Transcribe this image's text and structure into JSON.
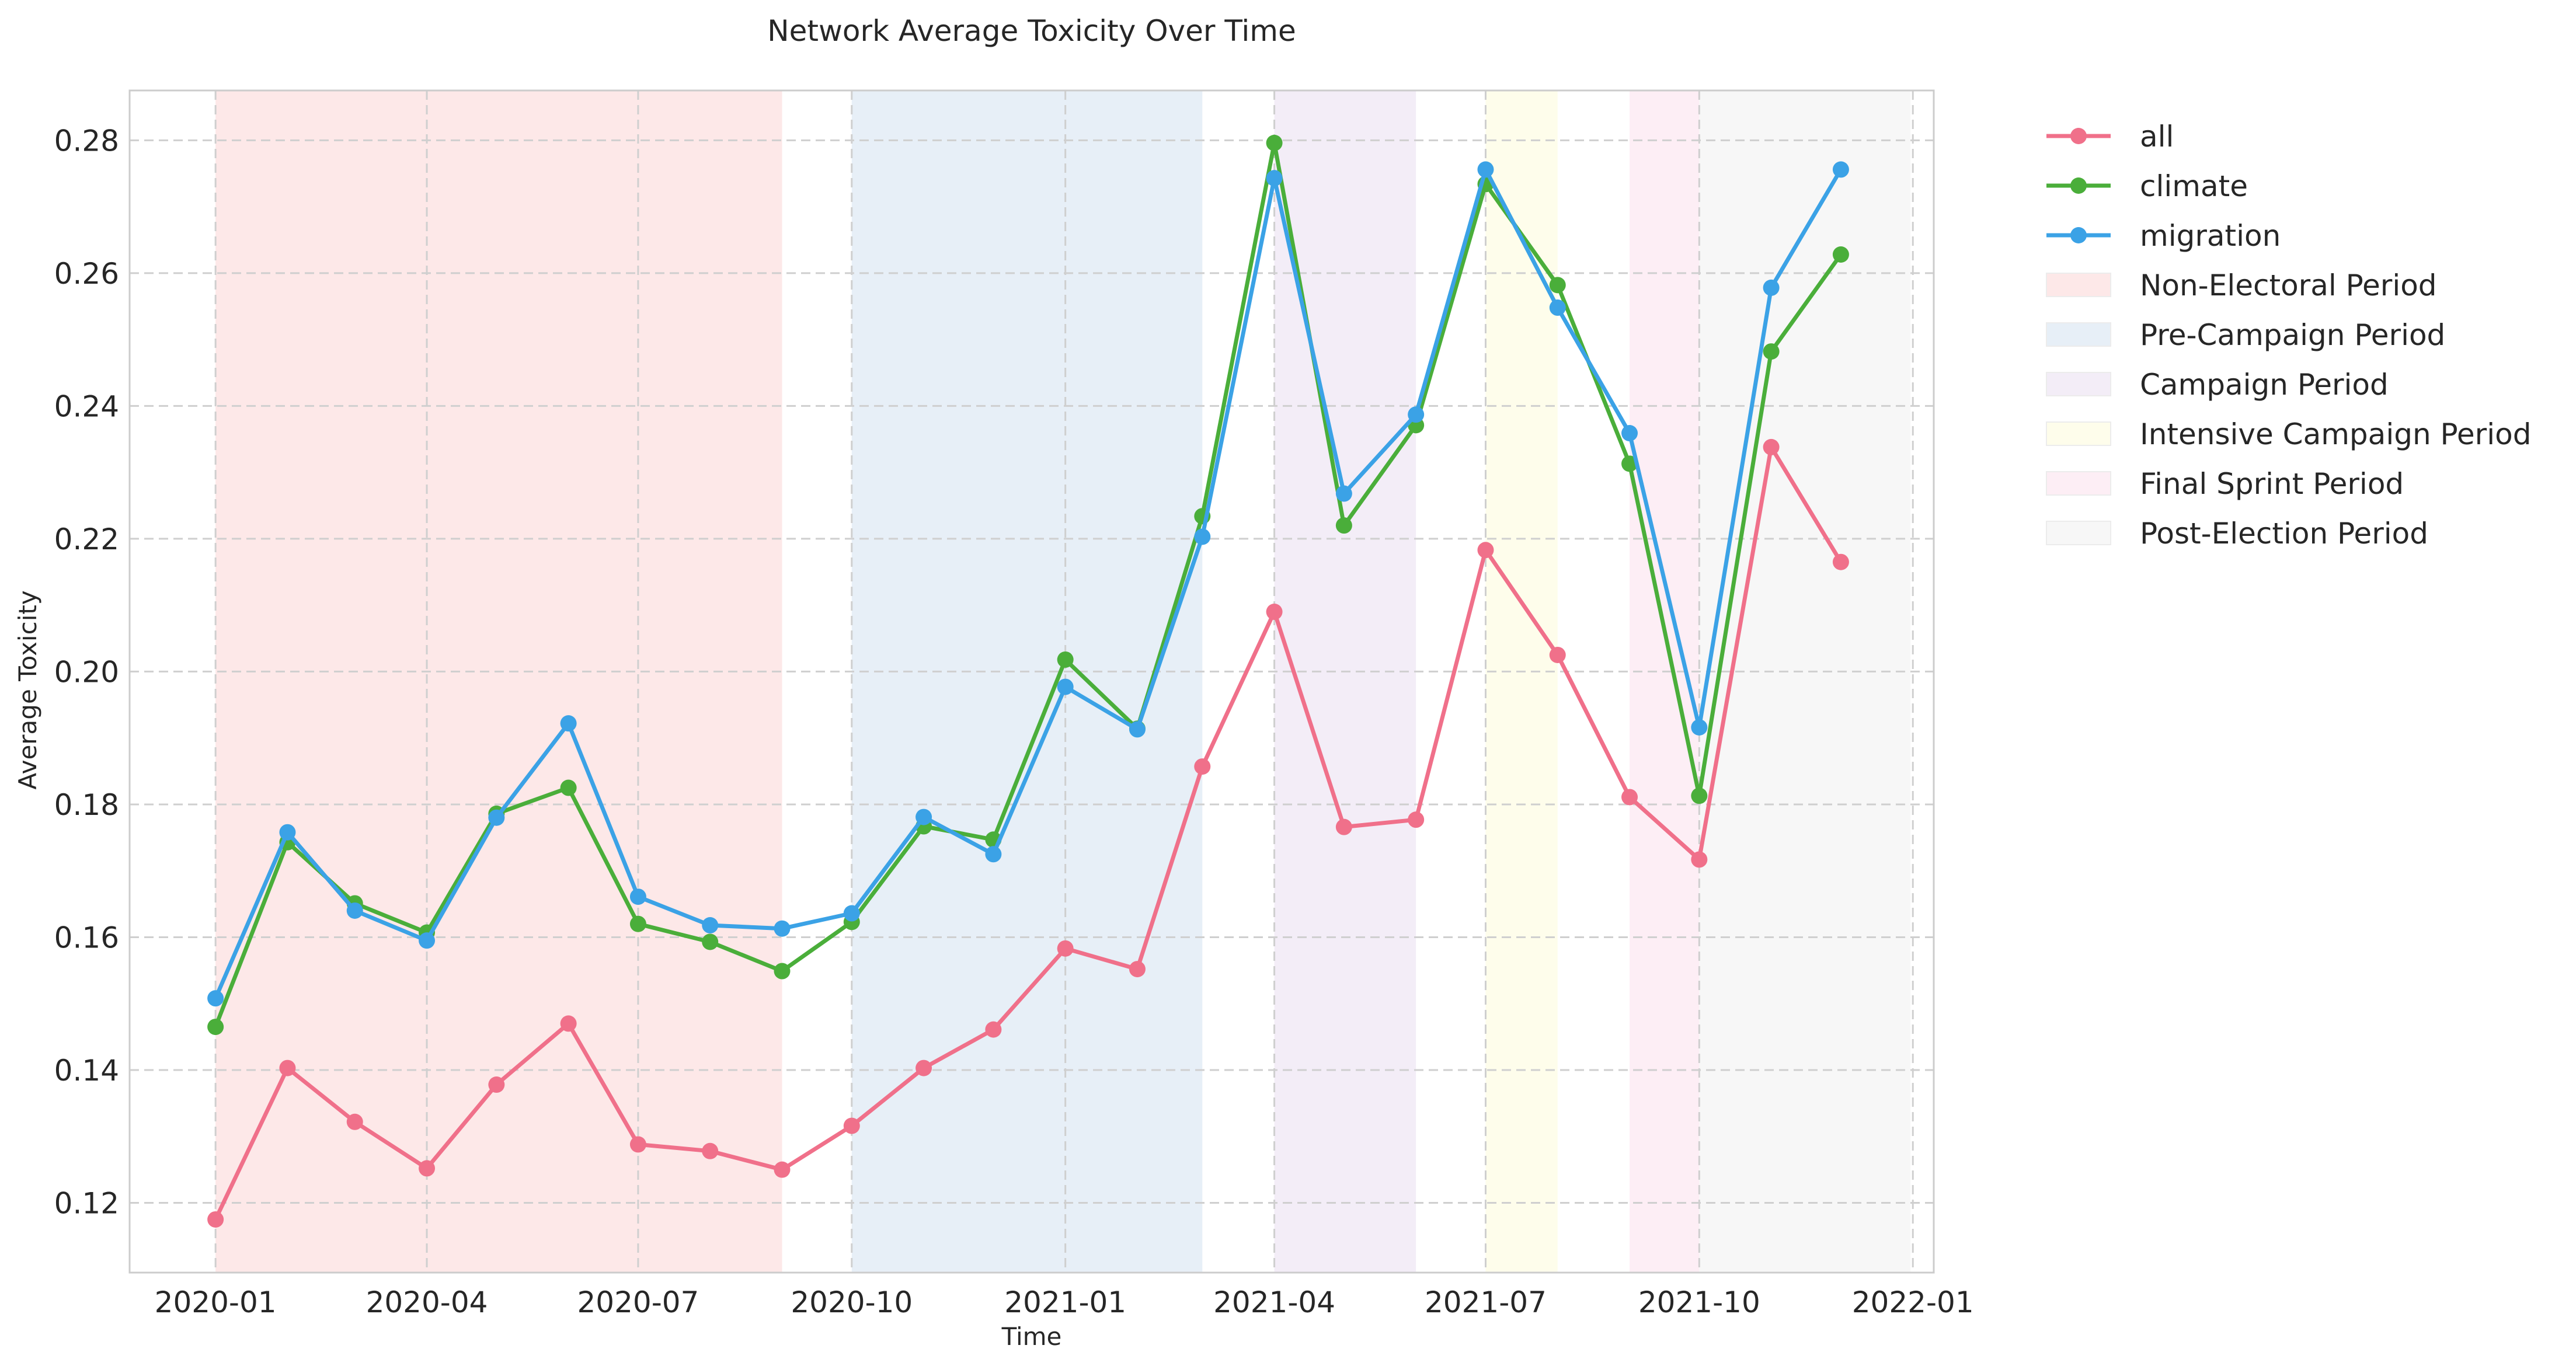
{
  "chart_data": {
    "type": "line",
    "title": "Network Average Toxicity Over Time",
    "xlabel": "Time",
    "ylabel": "Average Toxicity",
    "xlim": [
      "2019-11-25",
      "2022-01-10"
    ],
    "ylim": [
      0.1095,
      0.2875
    ],
    "x_ticks": [
      "2020-01",
      "2020-04",
      "2020-07",
      "2020-10",
      "2021-01",
      "2021-04",
      "2021-07",
      "2021-10",
      "2022-01"
    ],
    "y_ticks": [
      "0.12",
      "0.14",
      "0.16",
      "0.18",
      "0.20",
      "0.22",
      "0.24",
      "0.26",
      "0.28"
    ],
    "grid": true,
    "legend_position": "outside-right",
    "x": [
      "2020-01-01",
      "2020-02-01",
      "2020-03-01",
      "2020-04-01",
      "2020-05-01",
      "2020-06-01",
      "2020-07-01",
      "2020-08-01",
      "2020-09-01",
      "2020-10-01",
      "2020-11-01",
      "2020-12-01",
      "2021-01-01",
      "2021-02-01",
      "2021-03-01",
      "2021-04-01",
      "2021-05-01",
      "2021-06-01",
      "2021-07-01",
      "2021-08-01",
      "2021-09-01",
      "2021-10-01",
      "2021-11-01",
      "2021-12-01"
    ],
    "series": [
      {
        "name": "all",
        "color": "#f0708a",
        "values": [
          0.1175,
          0.1403,
          0.1322,
          0.1252,
          0.1378,
          0.147,
          0.1288,
          0.1278,
          0.125,
          0.1316,
          0.1403,
          0.1461,
          0.1583,
          0.1552,
          0.1857,
          0.209,
          0.1766,
          0.1777,
          0.2183,
          0.2025,
          0.1811,
          0.1717,
          0.2338,
          0.2165
        ]
      },
      {
        "name": "climate",
        "color": "#4aae3a",
        "values": [
          0.1465,
          0.1743,
          0.1651,
          0.1607,
          0.1786,
          0.1825,
          0.162,
          0.1593,
          0.1549,
          0.1623,
          0.1767,
          0.1747,
          0.2018,
          0.1914,
          0.2234,
          0.2796,
          0.222,
          0.2371,
          0.2734,
          0.2582,
          0.2313,
          0.1813,
          0.2482,
          0.2628
        ]
      },
      {
        "name": "migration",
        "color": "#3ba2e6",
        "values": [
          0.1508,
          0.1758,
          0.164,
          0.1595,
          0.178,
          0.1922,
          0.1661,
          0.1618,
          0.1613,
          0.1636,
          0.1781,
          0.1725,
          0.1977,
          0.1913,
          0.2203,
          0.2743,
          0.2268,
          0.2387,
          0.2756,
          0.2548,
          0.2359,
          0.1916,
          0.2578,
          0.2756
        ]
      }
    ],
    "periods": [
      {
        "name": "Non-Electoral Period",
        "start": "2020-01-01",
        "end": "2020-09-01",
        "color": "#fde8e8"
      },
      {
        "name": "Pre-Campaign Period",
        "start": "2020-10-01",
        "end": "2021-03-01",
        "color": "#e7eff7"
      },
      {
        "name": "Campaign Period",
        "start": "2021-04-01",
        "end": "2021-06-01",
        "color": "#f3edf7"
      },
      {
        "name": "Intensive Campaign Period",
        "start": "2021-07-01",
        "end": "2021-08-01",
        "color": "#fefdeb"
      },
      {
        "name": "Final Sprint Period",
        "start": "2021-09-01",
        "end": "2021-10-01",
        "color": "#fdeef5"
      },
      {
        "name": "Post-Election Period",
        "start": "2021-10-01",
        "end": "2021-12-31",
        "color": "#f7f7f7"
      }
    ]
  }
}
